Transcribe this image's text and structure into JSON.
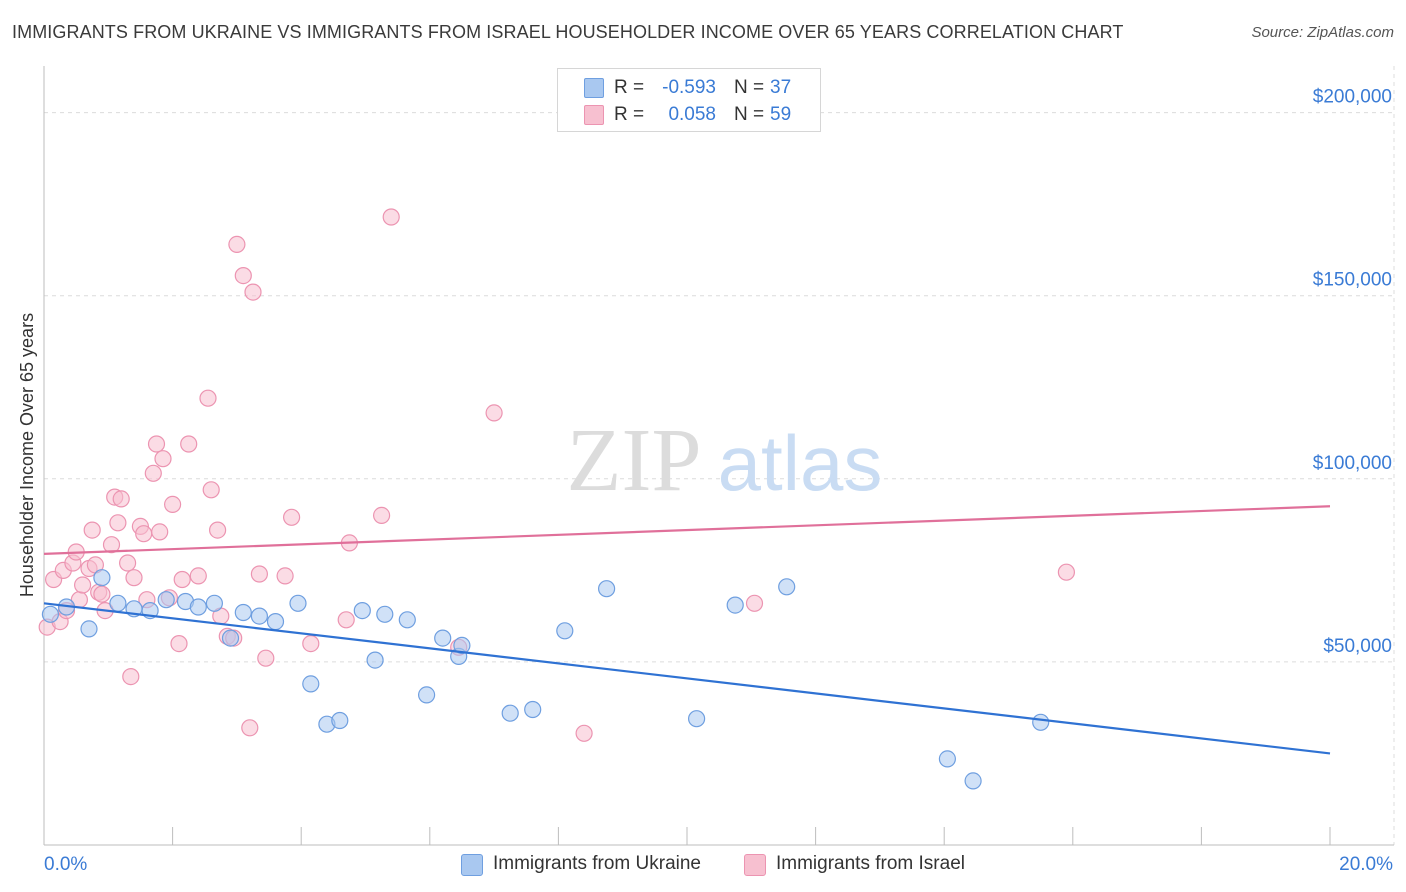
{
  "header": {
    "title": "IMMIGRANTS FROM UKRAINE VS IMMIGRANTS FROM ISRAEL HOUSEHOLDER INCOME OVER 65 YEARS CORRELATION CHART",
    "source": "Source: ZipAtlas.com"
  },
  "watermark": {
    "zip": "ZIP",
    "atlas": "atlas"
  },
  "stats": [
    {
      "r_label": "R =",
      "r_value": "-0.593",
      "n_label": "N =",
      "n_value": "37"
    },
    {
      "r_label": "R =",
      "r_value": "0.058",
      "n_label": "N =",
      "n_value": "59"
    }
  ],
  "legend": {
    "ukraine": "Immigrants from Ukraine",
    "israel": "Immigrants from Israel"
  },
  "colors": {
    "ukraine_fill": "#a9c8f0",
    "ukraine_stroke": "#6f9fe0",
    "ukraine_line": "#2f72d3",
    "israel_fill": "#f7c0d0",
    "israel_stroke": "#ec94b1",
    "israel_line": "#e0709a",
    "axis_label": "#3a7bd5",
    "grid": "#dcdcdc"
  },
  "chart_data": {
    "type": "scatter",
    "title": "IMMIGRANTS FROM UKRAINE VS IMMIGRANTS FROM ISRAEL HOUSEHOLDER INCOME OVER 65 YEARS CORRELATION CHART",
    "xlabel": "",
    "ylabel": "Householder Income Over 65 years",
    "xlim": [
      0,
      20
    ],
    "ylim": [
      0,
      210000
    ],
    "x_tick_labels": [
      {
        "value": 0,
        "label": "0.0%"
      },
      {
        "value": 20,
        "label": "20.0%"
      }
    ],
    "y_tick_labels": [
      {
        "value": 50000,
        "label": "$50,000"
      },
      {
        "value": 100000,
        "label": "$100,000"
      },
      {
        "value": 150000,
        "label": "$150,000"
      },
      {
        "value": 200000,
        "label": "$200,000"
      }
    ],
    "grid": true,
    "legend_position": "bottom-center",
    "series": [
      {
        "name": "Immigrants from Ukraine",
        "r": -0.593,
        "n": 37,
        "trend": {
          "x": [
            0,
            20
          ],
          "y": [
            66000,
            25000
          ]
        },
        "points": [
          [
            0.1,
            63000
          ],
          [
            0.35,
            65000
          ],
          [
            0.7,
            59000
          ],
          [
            0.9,
            73000
          ],
          [
            1.15,
            66000
          ],
          [
            1.4,
            64500
          ],
          [
            1.65,
            64000
          ],
          [
            1.9,
            67000
          ],
          [
            2.2,
            66500
          ],
          [
            2.4,
            65000
          ],
          [
            2.65,
            66000
          ],
          [
            2.9,
            56500
          ],
          [
            3.1,
            63500
          ],
          [
            3.35,
            62500
          ],
          [
            3.6,
            61000
          ],
          [
            3.95,
            66000
          ],
          [
            4.15,
            44000
          ],
          [
            4.4,
            33000
          ],
          [
            4.6,
            34000
          ],
          [
            4.95,
            64000
          ],
          [
            5.15,
            50500
          ],
          [
            5.3,
            63000
          ],
          [
            5.65,
            61500
          ],
          [
            5.95,
            41000
          ],
          [
            6.2,
            56500
          ],
          [
            6.45,
            51500
          ],
          [
            6.5,
            54500
          ],
          [
            7.25,
            36000
          ],
          [
            7.6,
            37000
          ],
          [
            8.1,
            58500
          ],
          [
            8.75,
            70000
          ],
          [
            10.15,
            34500
          ],
          [
            10.75,
            65500
          ],
          [
            11.55,
            70500
          ],
          [
            14.05,
            23500
          ],
          [
            14.45,
            17500
          ],
          [
            15.5,
            33500
          ]
        ]
      },
      {
        "name": "Immigrants from Israel",
        "r": 0.058,
        "n": 59,
        "trend": {
          "x": [
            0,
            20
          ],
          "y": [
            79500,
            92500
          ]
        },
        "points": [
          [
            0.05,
            59500
          ],
          [
            0.15,
            72500
          ],
          [
            0.25,
            61000
          ],
          [
            0.3,
            75000
          ],
          [
            0.35,
            64000
          ],
          [
            0.45,
            77000
          ],
          [
            0.5,
            80000
          ],
          [
            0.55,
            67000
          ],
          [
            0.6,
            71000
          ],
          [
            0.7,
            75500
          ],
          [
            0.75,
            86000
          ],
          [
            0.8,
            76500
          ],
          [
            0.85,
            69000
          ],
          [
            0.9,
            68500
          ],
          [
            0.95,
            64000
          ],
          [
            1.05,
            82000
          ],
          [
            1.1,
            95000
          ],
          [
            1.15,
            88000
          ],
          [
            1.2,
            94500
          ],
          [
            1.3,
            77000
          ],
          [
            1.35,
            46000
          ],
          [
            1.4,
            73000
          ],
          [
            1.5,
            87000
          ],
          [
            1.55,
            85000
          ],
          [
            1.6,
            67000
          ],
          [
            1.7,
            101500
          ],
          [
            1.75,
            109500
          ],
          [
            1.8,
            85500
          ],
          [
            1.85,
            105500
          ],
          [
            1.95,
            67500
          ],
          [
            2.0,
            93000
          ],
          [
            2.1,
            55000
          ],
          [
            2.15,
            72500
          ],
          [
            2.25,
            109500
          ],
          [
            2.4,
            73500
          ],
          [
            2.55,
            122000
          ],
          [
            2.6,
            97000
          ],
          [
            2.7,
            86000
          ],
          [
            2.75,
            62500
          ],
          [
            2.85,
            57000
          ],
          [
            2.95,
            56500
          ],
          [
            3.0,
            164000
          ],
          [
            3.1,
            155500
          ],
          [
            3.2,
            32000
          ],
          [
            3.25,
            151000
          ],
          [
            3.35,
            74000
          ],
          [
            3.45,
            51000
          ],
          [
            3.75,
            73500
          ],
          [
            3.85,
            89500
          ],
          [
            4.15,
            55000
          ],
          [
            4.7,
            61500
          ],
          [
            4.75,
            82500
          ],
          [
            5.25,
            90000
          ],
          [
            5.4,
            171500
          ],
          [
            6.45,
            54000
          ],
          [
            7.0,
            118000
          ],
          [
            8.4,
            30500
          ],
          [
            11.05,
            66000
          ],
          [
            15.9,
            74500
          ]
        ]
      }
    ]
  }
}
